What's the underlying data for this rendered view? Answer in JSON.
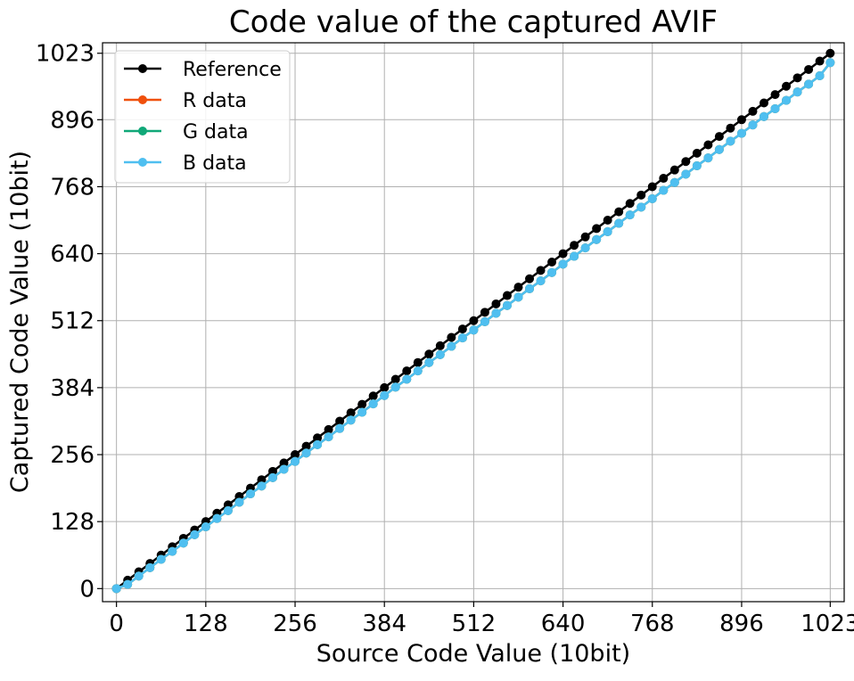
{
  "chart_data": {
    "type": "line",
    "title": "Code value of the captured AVIF",
    "xlabel": "Source Code Value (10bit)",
    "ylabel": "Captured Code Value (10bit)",
    "xlim": [
      -20,
      1043
    ],
    "ylim": [
      -25,
      1043
    ],
    "xticks": [
      0,
      128,
      256,
      384,
      512,
      640,
      768,
      896,
      1023
    ],
    "yticks": [
      0,
      128,
      256,
      384,
      512,
      640,
      768,
      896,
      1023
    ],
    "xtick_labels": [
      "0",
      "128",
      "256",
      "384",
      "512",
      "640",
      "768",
      "896",
      "1023"
    ],
    "ytick_labels": [
      "0",
      "128",
      "256",
      "384",
      "512",
      "640",
      "768",
      "896",
      "1023"
    ],
    "grid": true,
    "legend_position": "top-left",
    "x": [
      0,
      16,
      32,
      48,
      64,
      80,
      96,
      112,
      128,
      144,
      160,
      176,
      192,
      208,
      224,
      240,
      256,
      272,
      288,
      304,
      320,
      336,
      352,
      368,
      384,
      400,
      416,
      432,
      448,
      464,
      480,
      496,
      512,
      528,
      544,
      560,
      576,
      592,
      608,
      624,
      640,
      656,
      672,
      688,
      704,
      720,
      736,
      752,
      768,
      784,
      800,
      816,
      832,
      848,
      864,
      880,
      896,
      912,
      928,
      944,
      960,
      976,
      992,
      1008,
      1023
    ],
    "series": [
      {
        "name": "Reference",
        "color": "#000000",
        "values": [
          0,
          16,
          32,
          48,
          64,
          80,
          96,
          112,
          128,
          144,
          160,
          176,
          192,
          208,
          224,
          240,
          256,
          272,
          288,
          304,
          320,
          336,
          352,
          368,
          384,
          400,
          416,
          432,
          448,
          464,
          480,
          496,
          512,
          528,
          544,
          560,
          576,
          592,
          608,
          624,
          640,
          656,
          672,
          688,
          704,
          720,
          736,
          752,
          768,
          784,
          800,
          816,
          832,
          848,
          864,
          880,
          896,
          912,
          928,
          944,
          960,
          976,
          992,
          1008,
          1023
        ]
      },
      {
        "name": "R data",
        "color": "#f0500c",
        "values": [
          0,
          8,
          24,
          40,
          56,
          71,
          87,
          103,
          118,
          134,
          149,
          165,
          181,
          196,
          212,
          228,
          243,
          259,
          275,
          290,
          306,
          322,
          337,
          353,
          369,
          385,
          400,
          416,
          432,
          447,
          463,
          479,
          494,
          510,
          526,
          541,
          557,
          573,
          588,
          604,
          620,
          635,
          651,
          667,
          682,
          698,
          714,
          729,
          745,
          761,
          776,
          792,
          808,
          823,
          839,
          855,
          870,
          886,
          902,
          917,
          933,
          949,
          964,
          980,
          1005
        ]
      },
      {
        "name": "G data",
        "color": "#10a878",
        "values": [
          0,
          8,
          24,
          40,
          56,
          71,
          87,
          103,
          118,
          134,
          149,
          165,
          181,
          196,
          212,
          228,
          243,
          259,
          275,
          290,
          306,
          322,
          337,
          353,
          369,
          385,
          400,
          416,
          432,
          447,
          463,
          479,
          494,
          510,
          526,
          541,
          557,
          573,
          588,
          604,
          620,
          635,
          651,
          667,
          682,
          698,
          714,
          729,
          745,
          761,
          776,
          792,
          808,
          823,
          839,
          855,
          870,
          886,
          902,
          917,
          933,
          949,
          964,
          980,
          1005
        ]
      },
      {
        "name": "B data",
        "color": "#4fbff0",
        "values": [
          0,
          8,
          24,
          40,
          56,
          71,
          87,
          103,
          118,
          134,
          149,
          165,
          181,
          196,
          212,
          228,
          243,
          259,
          275,
          290,
          306,
          322,
          337,
          353,
          369,
          385,
          400,
          416,
          432,
          447,
          463,
          479,
          494,
          510,
          526,
          541,
          557,
          573,
          588,
          604,
          620,
          635,
          651,
          667,
          682,
          698,
          714,
          729,
          745,
          761,
          776,
          792,
          808,
          823,
          839,
          855,
          870,
          886,
          902,
          917,
          933,
          949,
          964,
          980,
          1005
        ]
      }
    ]
  }
}
